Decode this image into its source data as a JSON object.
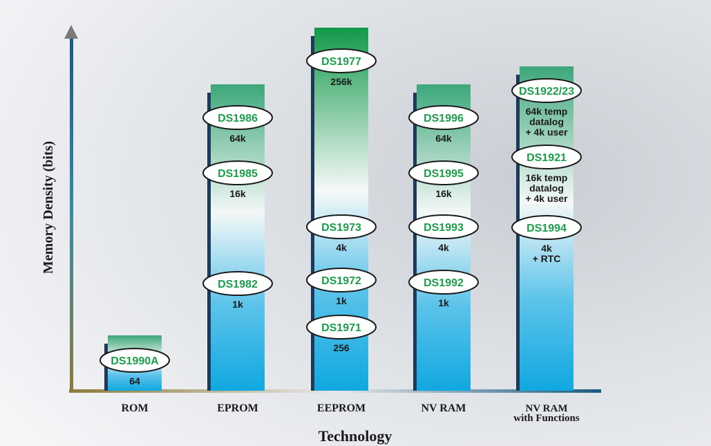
{
  "y_axis_label": "Memory Density (bits)",
  "x_axis_label": "Technology",
  "columns": [
    {
      "label": [
        "ROM"
      ],
      "devices": [
        {
          "name": "DS1990A",
          "capacity": [
            "64"
          ]
        }
      ]
    },
    {
      "label": [
        "EPROM"
      ],
      "devices": [
        {
          "name": "DS1986",
          "capacity": [
            "64k"
          ]
        },
        {
          "name": "DS1985",
          "capacity": [
            "16k"
          ]
        },
        {
          "name": "DS1982",
          "capacity": [
            "1k"
          ]
        }
      ]
    },
    {
      "label": [
        "EEPROM"
      ],
      "devices": [
        {
          "name": "DS1977",
          "capacity": [
            "256k"
          ]
        },
        {
          "name": "DS1973",
          "capacity": [
            "4k"
          ]
        },
        {
          "name": "DS1972",
          "capacity": [
            "1k"
          ]
        },
        {
          "name": "DS1971",
          "capacity": [
            "256"
          ]
        }
      ]
    },
    {
      "label": [
        "NV RAM"
      ],
      "devices": [
        {
          "name": "DS1996",
          "capacity": [
            "64k"
          ]
        },
        {
          "name": "DS1995",
          "capacity": [
            "16k"
          ]
        },
        {
          "name": "DS1993",
          "capacity": [
            "4k"
          ]
        },
        {
          "name": "DS1992",
          "capacity": [
            "1k"
          ]
        }
      ]
    },
    {
      "label": [
        "NV RAM",
        "with Functions"
      ],
      "devices": [
        {
          "name": "DS1922/23",
          "capacity": [
            "64k temp",
            "datalog",
            "+ 4k user"
          ]
        },
        {
          "name": "DS1921",
          "capacity": [
            "16k temp",
            "datalog",
            "+ 4k user"
          ]
        },
        {
          "name": "DS1994",
          "capacity": [
            "4k",
            "+ RTC"
          ]
        }
      ]
    }
  ]
}
